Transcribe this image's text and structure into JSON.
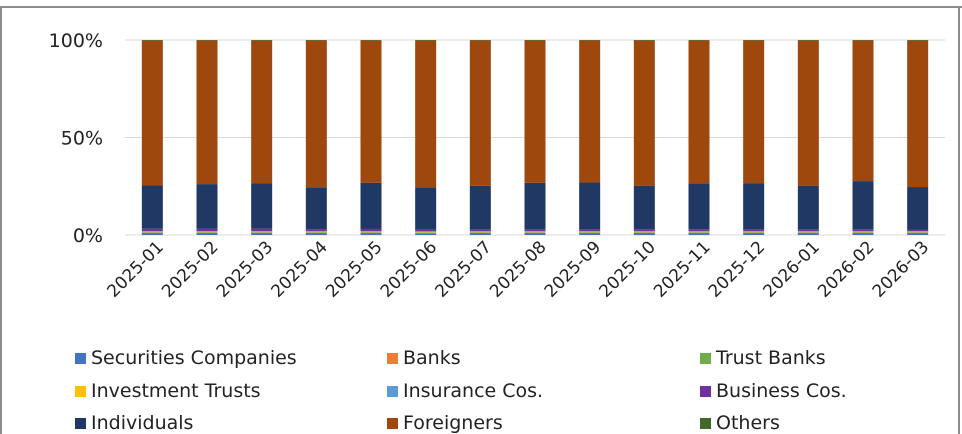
{
  "chart_data": {
    "type": "bar",
    "stacked": true,
    "normalized": true,
    "title": "",
    "xlabel": "",
    "ylabel": "",
    "ylim": [
      0,
      100
    ],
    "y_ticks": [
      {
        "value": 0,
        "label": "0%"
      },
      {
        "value": 50,
        "label": "50%"
      },
      {
        "value": 100,
        "label": "100%"
      }
    ],
    "grid": true,
    "legend_position": "bottom",
    "categories": [
      "2025-01",
      "2025-02",
      "2025-03",
      "2025-04",
      "2025-05",
      "2025-06",
      "2025-07",
      "2025-08",
      "2025-09",
      "2025-10",
      "2025-11",
      "2025-12",
      "2026-01",
      "2026-02",
      "2026-03"
    ],
    "series": [
      {
        "name": "Securities Companies",
        "color": "#4472C4",
        "values": [
          1.0,
          1.0,
          1.0,
          1.0,
          1.0,
          0.9,
          1.0,
          1.0,
          1.0,
          1.0,
          1.0,
          1.0,
          1.0,
          1.0,
          1.0
        ]
      },
      {
        "name": "Banks",
        "color": "#ED7D31",
        "values": [
          0.2,
          0.2,
          0.2,
          0.2,
          0.2,
          0.2,
          0.2,
          0.2,
          0.2,
          0.2,
          0.2,
          0.2,
          0.2,
          0.2,
          0.2
        ]
      },
      {
        "name": "Trust Banks",
        "color": "#70AD47",
        "values": [
          0.3,
          0.3,
          0.3,
          0.3,
          0.3,
          0.3,
          0.3,
          0.3,
          0.3,
          0.3,
          0.3,
          0.3,
          0.3,
          0.3,
          0.3
        ]
      },
      {
        "name": "Investment Trusts",
        "color": "#FFC000",
        "values": [
          0.2,
          0.2,
          0.2,
          0.2,
          0.2,
          0.2,
          0.2,
          0.2,
          0.2,
          0.2,
          0.2,
          0.2,
          0.2,
          0.2,
          0.2
        ]
      },
      {
        "name": "Insurance Cos.",
        "color": "#5B9BD5",
        "values": [
          0.3,
          0.3,
          0.3,
          0.3,
          0.3,
          0.3,
          0.3,
          0.3,
          0.3,
          0.3,
          0.3,
          0.3,
          0.3,
          0.3,
          0.3
        ]
      },
      {
        "name": "Business Cos.",
        "color": "#7030A0",
        "values": [
          1.2,
          1.3,
          1.2,
          1.0,
          1.1,
          0.8,
          0.9,
          0.9,
          0.9,
          1.0,
          1.0,
          0.9,
          0.9,
          0.9,
          0.8
        ]
      },
      {
        "name": "Individuals",
        "color": "#203864",
        "values": [
          22.2,
          22.8,
          23.4,
          21.5,
          23.6,
          21.8,
          22.3,
          23.9,
          24.0,
          22.3,
          23.6,
          23.7,
          22.4,
          24.6,
          21.8
        ]
      },
      {
        "name": "Foreigners",
        "color": "#9E480E",
        "values": [
          74.3,
          73.6,
          73.1,
          75.2,
          72.9,
          75.2,
          74.5,
          73.0,
          72.8,
          74.4,
          73.3,
          73.1,
          74.4,
          71.7,
          75.1
        ]
      },
      {
        "name": "Others",
        "color": "#43682B",
        "values": [
          0.3,
          0.3,
          0.3,
          0.3,
          0.3,
          0.3,
          0.3,
          0.3,
          0.3,
          0.3,
          0.3,
          0.3,
          0.3,
          0.3,
          0.3
        ]
      }
    ]
  }
}
